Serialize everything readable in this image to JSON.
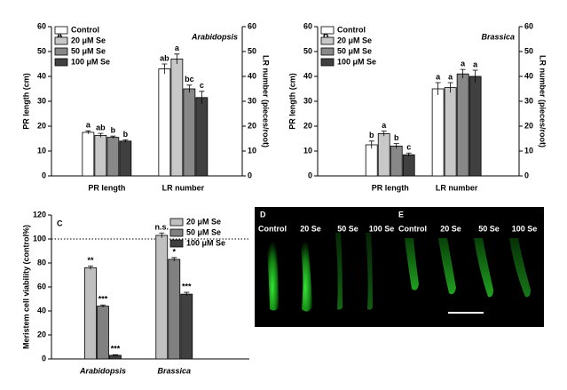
{
  "chart_data": [
    {
      "type": "bar",
      "panel": "A",
      "annotation": "Arabidopsis",
      "ylabel": "PR length (cm)",
      "y2label": "LR number (pieces/root)",
      "categories": [
        "PR length",
        "LR number"
      ],
      "series": [
        {
          "name": "Control",
          "color": "#ffffff",
          "values": [
            17.5,
            43
          ],
          "errors": [
            0.6,
            2
          ],
          "labels": [
            "a",
            "ab"
          ]
        },
        {
          "name": "20 μM Se",
          "color": "#c8c8c8",
          "values": [
            16.3,
            47
          ],
          "errors": [
            0.8,
            2
          ],
          "labels": [
            "ab",
            "a"
          ]
        },
        {
          "name": "50 μM Se",
          "color": "#888888",
          "values": [
            15.5,
            35
          ],
          "errors": [
            0.5,
            1.5
          ],
          "labels": [
            "b",
            "bc"
          ]
        },
        {
          "name": "100 μM Se",
          "color": "#404040",
          "values": [
            14,
            31.5
          ],
          "errors": [
            0.5,
            2.5
          ],
          "labels": [
            "b",
            "c"
          ]
        }
      ],
      "ylim": [
        0,
        60
      ],
      "yticks": [
        0,
        10,
        20,
        30,
        40,
        50,
        60
      ],
      "y2lim": [
        0,
        60
      ],
      "y2ticks": [
        0,
        10,
        20,
        30,
        40,
        50,
        60
      ]
    },
    {
      "type": "bar",
      "panel": "B",
      "annotation": "Brassica",
      "ylabel": "PR length (cm)",
      "y2label": "LR number (pieces/root)",
      "categories": [
        "PR length",
        "LR number"
      ],
      "series": [
        {
          "name": "Control",
          "color": "#ffffff",
          "values": [
            12.5,
            35
          ],
          "errors": [
            1.5,
            2.5
          ],
          "labels": [
            "b",
            "a"
          ]
        },
        {
          "name": "20 μM Se",
          "color": "#c8c8c8",
          "values": [
            17,
            35.5
          ],
          "errors": [
            1,
            2
          ],
          "labels": [
            "a",
            "a"
          ]
        },
        {
          "name": "50 μM Se",
          "color": "#888888",
          "values": [
            12,
            41
          ],
          "errors": [
            1,
            1.8
          ],
          "labels": [
            "b",
            "a"
          ]
        },
        {
          "name": "100 μM Se",
          "color": "#404040",
          "values": [
            8.5,
            40
          ],
          "errors": [
            0.7,
            2.5
          ],
          "labels": [
            "c",
            "a"
          ]
        }
      ],
      "ylim": [
        0,
        60
      ],
      "yticks": [
        0,
        10,
        20,
        30,
        40,
        50,
        60
      ],
      "y2lim": [
        0,
        60
      ],
      "y2ticks": [
        0,
        10,
        20,
        30,
        40,
        50,
        60
      ]
    },
    {
      "type": "bar",
      "panel": "C",
      "ylabel": "Meristem cell viability (control%)",
      "categories": [
        "Arabidopsis",
        "Brassica"
      ],
      "series": [
        {
          "name": "20 μM Se",
          "color": "#c0c0c0",
          "values": [
            76,
            103
          ],
          "errors": [
            1.5,
            2
          ],
          "labels": [
            "**",
            "n.s."
          ]
        },
        {
          "name": "50 μM Se",
          "color": "#808080",
          "values": [
            44,
            83
          ],
          "errors": [
            1,
            1.5
          ],
          "labels": [
            "***",
            "*"
          ]
        },
        {
          "name": "100 μM Se",
          "color": "#404040",
          "values": [
            3,
            54
          ],
          "errors": [
            0.5,
            1.5
          ],
          "labels": [
            "***",
            "***"
          ]
        }
      ],
      "ylim": [
        0,
        120
      ],
      "yticks": [
        0,
        20,
        40,
        60,
        80,
        100,
        120
      ],
      "reference_line": 100
    }
  ],
  "images": [
    {
      "panel": "D",
      "labels": [
        "Control",
        "20 Se",
        "50 Se",
        "100 Se"
      ]
    },
    {
      "panel": "E",
      "labels": [
        "Control",
        "20 Se",
        "50 Se",
        "100 Se"
      ]
    }
  ]
}
